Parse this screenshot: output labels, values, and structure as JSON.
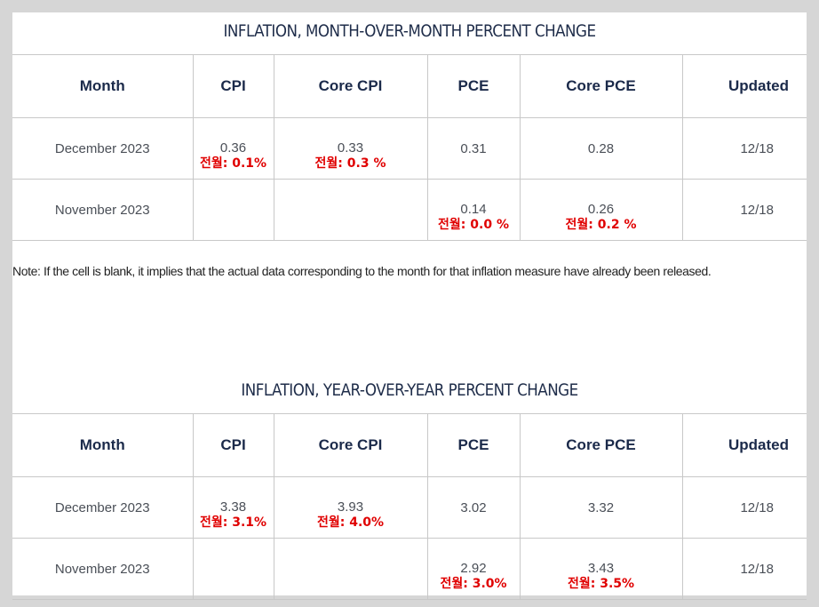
{
  "mom": {
    "title": "INFLATION, MONTH-OVER-MONTH PERCENT CHANGE",
    "headers": [
      "Month",
      "CPI",
      "Core CPI",
      "PCE",
      "Core PCE",
      "Updated"
    ],
    "rows": [
      {
        "month": "December 2023",
        "cpi": "0.36",
        "cpi_note": "전월: 0.1%",
        "core_cpi": "0.33",
        "core_cpi_note": "전월: 0.3 %",
        "pce": "0.31",
        "pce_note": "",
        "core_pce": "0.28",
        "core_pce_note": "",
        "updated": "12/18"
      },
      {
        "month": "November 2023",
        "cpi": "",
        "cpi_note": "",
        "core_cpi": "",
        "core_cpi_note": "",
        "pce": "0.14",
        "pce_note": "전월: 0.0 %",
        "core_pce": "0.26",
        "core_pce_note": "전월: 0.2 %",
        "updated": "12/18"
      }
    ]
  },
  "note": "Note: If the cell is blank, it implies that the actual data corresponding to the month for that inflation measure have already been released.",
  "yoy": {
    "title": "INFLATION, YEAR-OVER-YEAR PERCENT CHANGE",
    "headers": [
      "Month",
      "CPI",
      "Core CPI",
      "PCE",
      "Core PCE",
      "Updated"
    ],
    "rows": [
      {
        "month": "December 2023",
        "cpi": "3.38",
        "cpi_note": "전월: 3.1%",
        "core_cpi": "3.93",
        "core_cpi_note": "전월: 4.0%",
        "pce": "3.02",
        "pce_note": "",
        "core_pce": "3.32",
        "core_pce_note": "",
        "updated": "12/18"
      },
      {
        "month": "November 2023",
        "cpi": "",
        "cpi_note": "",
        "core_cpi": "",
        "core_cpi_note": "",
        "pce": "2.92",
        "pce_note": "전월: 3.0%",
        "core_pce": "3.43",
        "core_pce_note": "전월: 3.5%",
        "updated": "12/18"
      }
    ]
  },
  "colors": {
    "header_text": "#1b2a4a",
    "annotation": "#e00000",
    "border": "#c8c8c8"
  }
}
